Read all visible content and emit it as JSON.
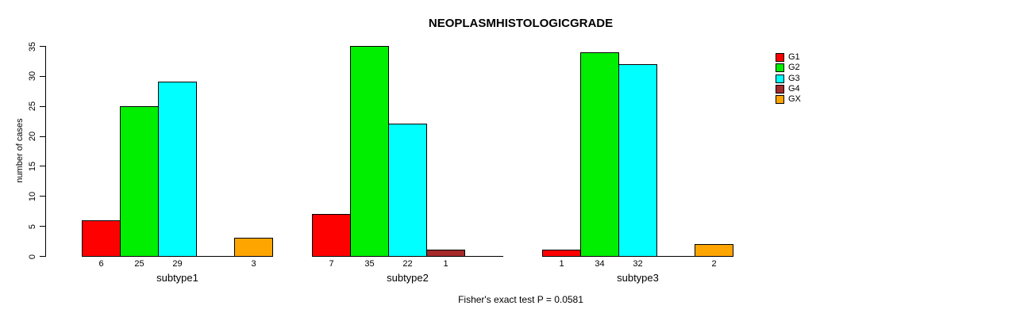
{
  "chart_data": {
    "type": "bar",
    "title": "NEOPLASMHISTOLOGICGRADE",
    "ylabel": "number of cases",
    "xlabel": "",
    "ylim": [
      0,
      35
    ],
    "yticks": [
      0,
      5,
      10,
      15,
      20,
      25,
      30,
      35
    ],
    "grid": false,
    "legend_position": "right",
    "bar_value_labels_shown": true,
    "zero_value_bars_hidden": true,
    "categories": [
      "subtype1",
      "subtype2",
      "subtype3"
    ],
    "series": [
      {
        "name": "G1",
        "color": "#ff0000",
        "values": [
          6,
          7,
          1
        ]
      },
      {
        "name": "G2",
        "color": "#00ee00",
        "values": [
          25,
          35,
          34
        ]
      },
      {
        "name": "G3",
        "color": "#00ffff",
        "values": [
          29,
          22,
          32
        ]
      },
      {
        "name": "G4",
        "color": "#a52a2a",
        "values": [
          0,
          1,
          0
        ]
      },
      {
        "name": "GX",
        "color": "#ffa500",
        "values": [
          3,
          0,
          2
        ]
      }
    ],
    "annotation": "Fisher's exact test P = 0.0581"
  }
}
